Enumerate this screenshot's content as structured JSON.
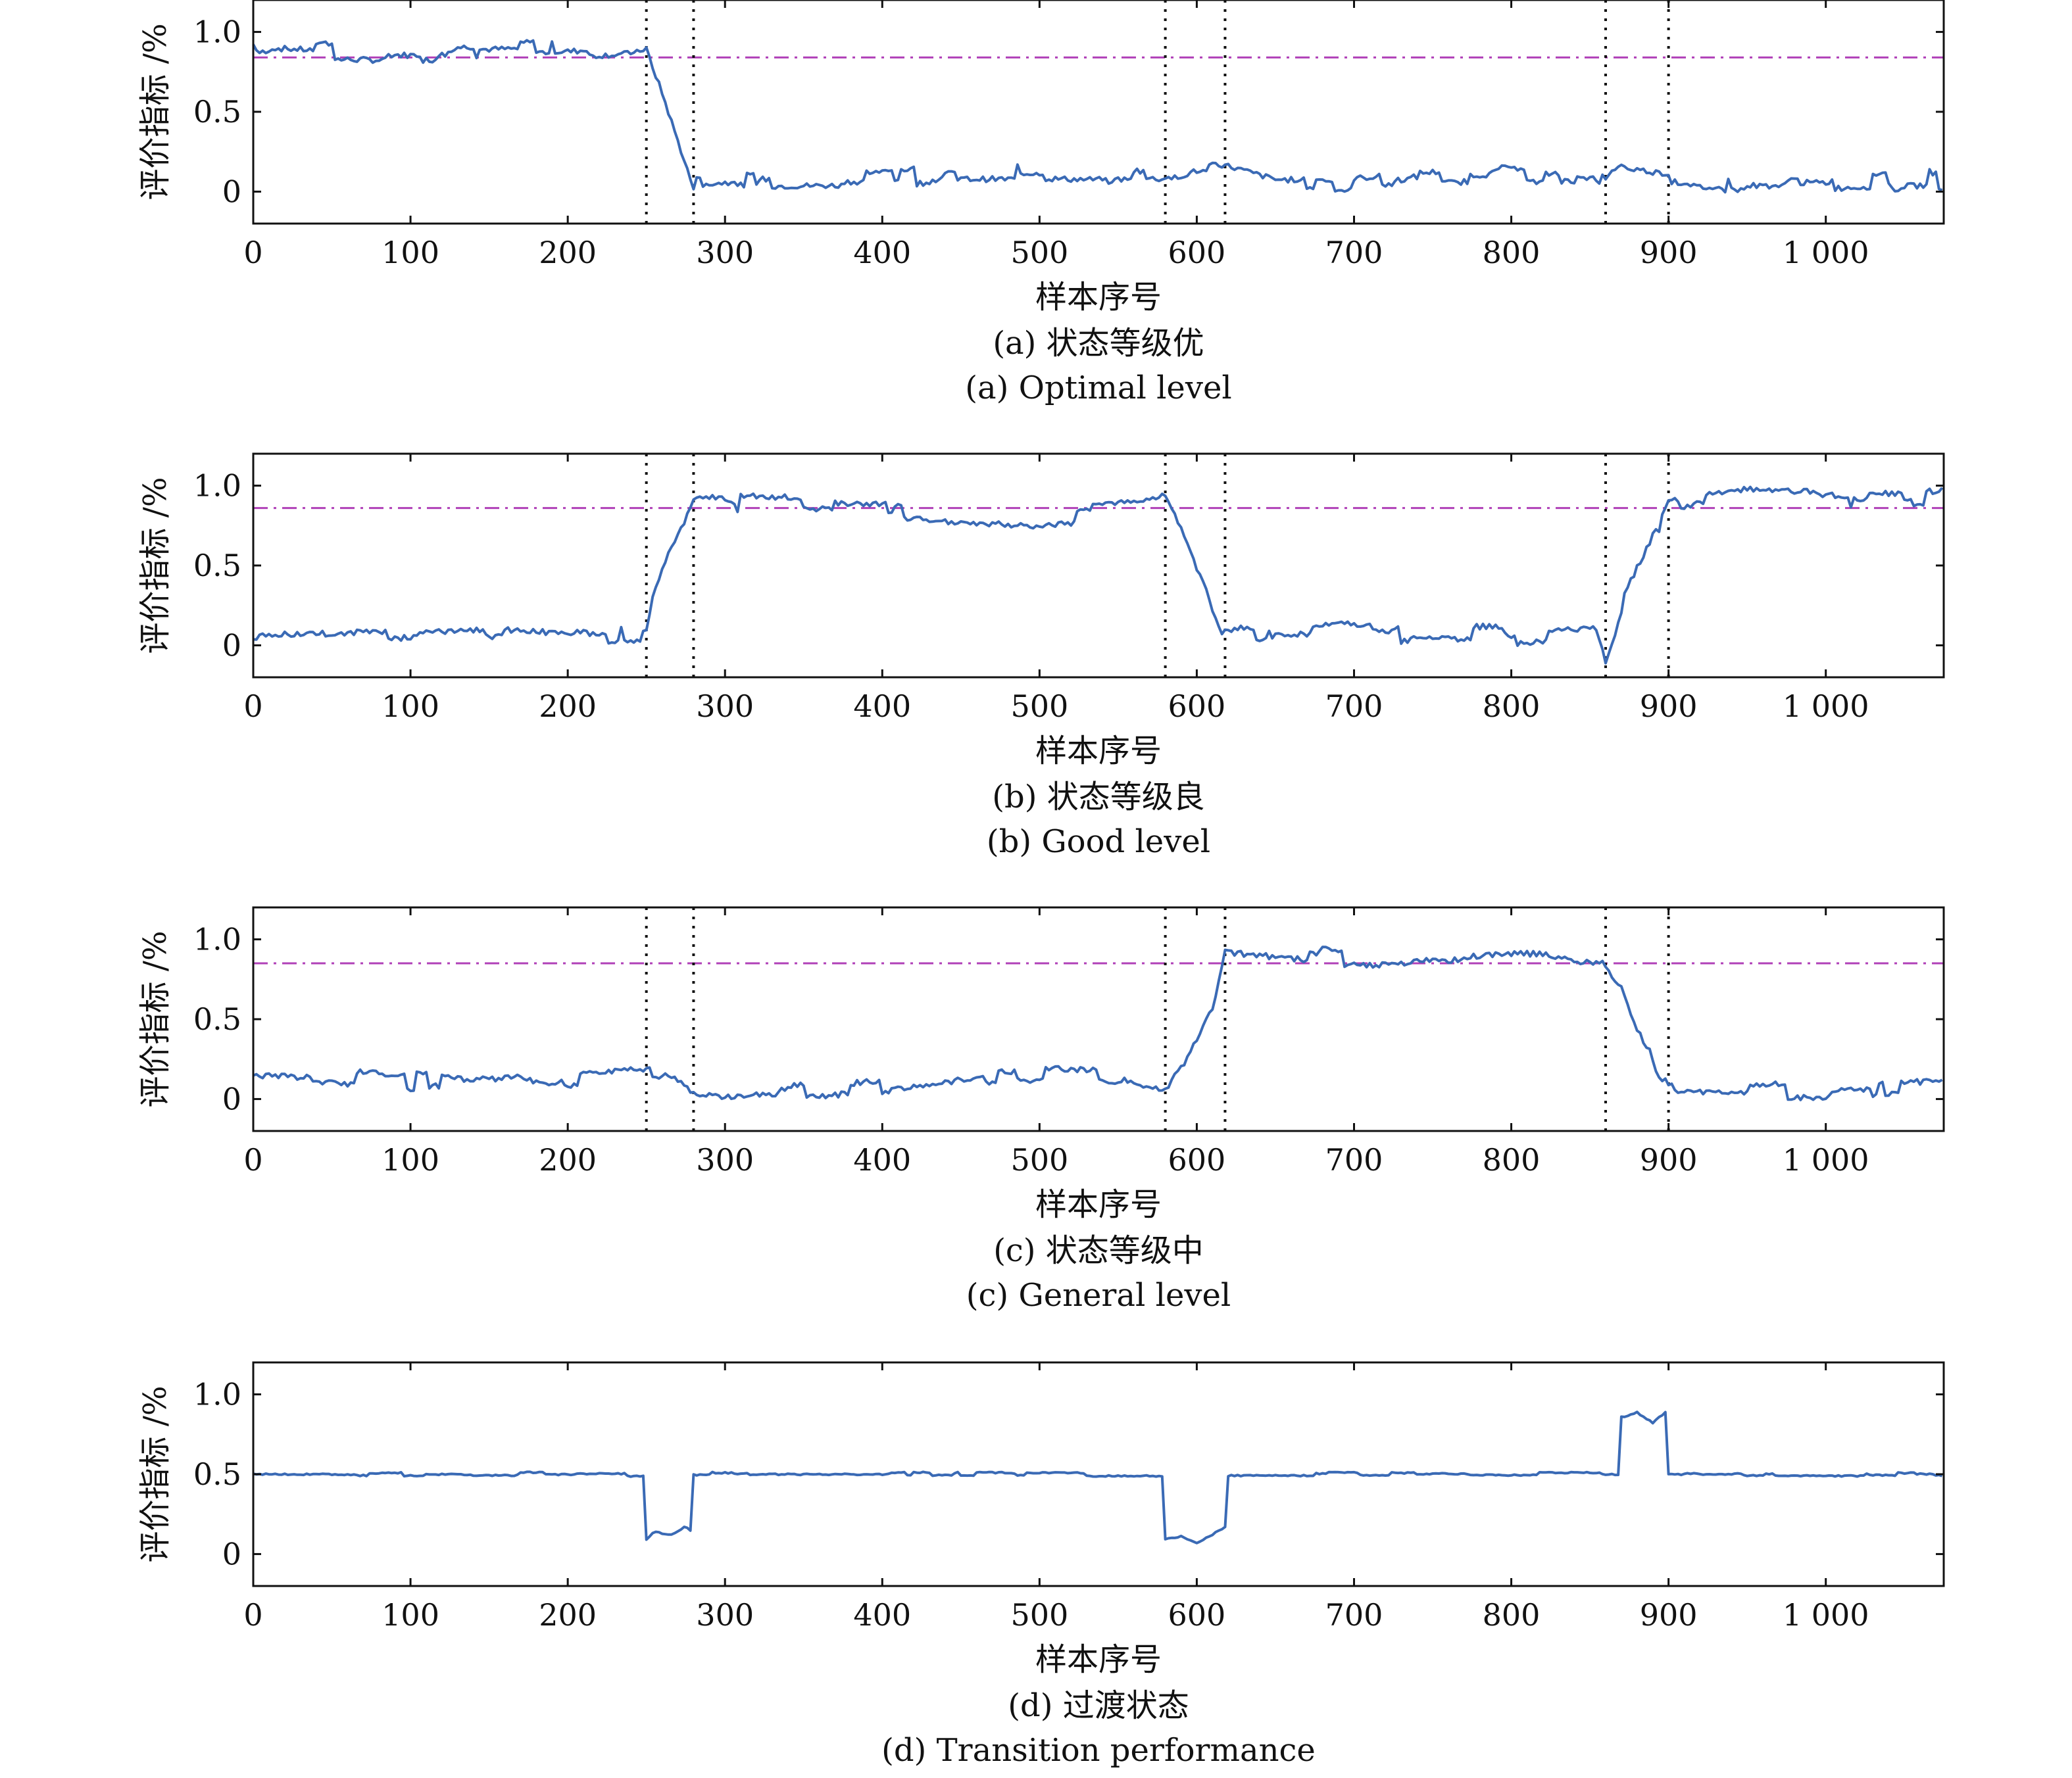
{
  "colors": {
    "series": "#3a6ab5",
    "threshold": "#b040b8",
    "axis": "#111111",
    "marker": "#111111"
  },
  "chart_data": [
    {
      "type": "line",
      "caption_cn": "(a) 状态等级优",
      "caption_en": "(a) Optimal level",
      "xlabel": "样本序号",
      "ylabel": "评价指标 /%",
      "xlim": [
        0,
        1075
      ],
      "ylim": [
        -0.2,
        1.2
      ],
      "xticks": [
        0,
        100,
        200,
        300,
        400,
        500,
        600,
        700,
        800,
        900,
        1000
      ],
      "xtick_labels": [
        "0",
        "100",
        "200",
        "300",
        "400",
        "500",
        "600",
        "700",
        "800",
        "900",
        "1 000"
      ],
      "yticks": [
        0,
        0.5,
        1.0
      ],
      "ytick_labels": [
        "0",
        "0.5",
        "1.0"
      ],
      "threshold": 0.84,
      "markers": [
        250,
        280,
        580,
        618,
        860,
        900
      ],
      "series": [
        {
          "x": [
            0,
            10,
            50,
            100,
            150,
            200,
            250,
            260,
            270,
            280,
            300,
            400,
            450,
            500,
            550,
            580,
            600,
            618,
            650,
            700,
            800,
            860,
            870,
            900,
            950,
            1000,
            1075
          ],
          "y": [
            0.92,
            0.9,
            0.88,
            0.87,
            0.88,
            0.89,
            0.92,
            0.65,
            0.35,
            0.05,
            0.06,
            0.07,
            0.12,
            0.12,
            0.11,
            0.1,
            0.16,
            0.14,
            0.05,
            0.04,
            0.11,
            0.05,
            0.12,
            0.08,
            0.04,
            0.04,
            0.08
          ]
        }
      ]
    },
    {
      "type": "line",
      "caption_cn": "(b) 状态等级良",
      "caption_en": "(b) Good level",
      "xlabel": "样本序号",
      "ylabel": "评价指标 /%",
      "xlim": [
        0,
        1075
      ],
      "ylim": [
        -0.2,
        1.2
      ],
      "xticks": [
        0,
        100,
        200,
        300,
        400,
        500,
        600,
        700,
        800,
        900,
        1000
      ],
      "xtick_labels": [
        "0",
        "100",
        "200",
        "300",
        "400",
        "500",
        "600",
        "700",
        "800",
        "900",
        "1 000"
      ],
      "yticks": [
        0,
        0.5,
        1.0
      ],
      "ytick_labels": [
        "0",
        "0.5",
        "1.0"
      ],
      "threshold": 0.86,
      "markers": [
        250,
        280,
        580,
        618,
        860,
        900
      ],
      "series": [
        {
          "x": [
            0,
            50,
            100,
            150,
            200,
            250,
            255,
            265,
            275,
            280,
            300,
            400,
            450,
            500,
            550,
            580,
            590,
            600,
            610,
            618,
            650,
            700,
            800,
            855,
            860,
            870,
            880,
            890,
            900,
            950,
            1000,
            1050,
            1075
          ],
          "y": [
            0.02,
            0.03,
            0.05,
            0.07,
            0.06,
            0.05,
            0.3,
            0.55,
            0.75,
            0.88,
            0.88,
            0.86,
            0.82,
            0.8,
            0.85,
            0.9,
            0.7,
            0.45,
            0.2,
            0.05,
            0.07,
            0.09,
            0.06,
            0.1,
            -0.05,
            0.25,
            0.45,
            0.65,
            0.88,
            0.95,
            0.93,
            0.9,
            0.92
          ]
        }
      ]
    },
    {
      "type": "line",
      "caption_cn": "(c) 状态等级中",
      "caption_en": "(c) General level",
      "xlabel": "样本序号",
      "ylabel": "评价指标 /%",
      "xlim": [
        0,
        1075
      ],
      "ylim": [
        -0.2,
        1.2
      ],
      "xticks": [
        0,
        100,
        200,
        300,
        400,
        500,
        600,
        700,
        800,
        900,
        1000
      ],
      "xtick_labels": [
        "0",
        "100",
        "200",
        "300",
        "400",
        "500",
        "600",
        "700",
        "800",
        "900",
        "1 000"
      ],
      "yticks": [
        0,
        0.5,
        1.0
      ],
      "ytick_labels": [
        "0",
        "0.5",
        "1.0"
      ],
      "threshold": 0.85,
      "markers": [
        250,
        280,
        580,
        618,
        860,
        900
      ],
      "series": [
        {
          "x": [
            0,
            50,
            100,
            150,
            200,
            250,
            265,
            280,
            300,
            400,
            450,
            500,
            550,
            580,
            590,
            600,
            610,
            615,
            618,
            650,
            700,
            750,
            800,
            855,
            860,
            870,
            880,
            890,
            900,
            950,
            1000,
            1075
          ],
          "y": [
            0.15,
            0.13,
            0.1,
            0.1,
            0.13,
            0.16,
            0.2,
            0.08,
            0.06,
            0.08,
            0.15,
            0.15,
            0.13,
            0.05,
            0.2,
            0.4,
            0.6,
            0.8,
            0.95,
            0.92,
            0.87,
            0.88,
            0.92,
            0.88,
            0.85,
            0.7,
            0.45,
            0.25,
            0.05,
            0.05,
            0.06,
            0.08
          ]
        }
      ]
    },
    {
      "type": "line",
      "caption_cn": "(d) 过渡状态",
      "caption_en": "(d) Transition performance",
      "xlabel": "样本序号",
      "ylabel": "评价指标 /%",
      "xlim": [
        0,
        1075
      ],
      "ylim": [
        -0.2,
        1.2
      ],
      "xticks": [
        0,
        100,
        200,
        300,
        400,
        500,
        600,
        700,
        800,
        900,
        1000
      ],
      "xtick_labels": [
        "0",
        "100",
        "200",
        "300",
        "400",
        "500",
        "600",
        "700",
        "800",
        "900",
        "1 000"
      ],
      "yticks": [
        0,
        0.5,
        1.0
      ],
      "ytick_labels": [
        "0",
        "0.5",
        "1.0"
      ],
      "markers": [],
      "series": [
        {
          "x": [
            0,
            249,
            250,
            255,
            265,
            275,
            279,
            280,
            579,
            580,
            590,
            600,
            610,
            618,
            619,
            869,
            870,
            880,
            890,
            899,
            900,
            1075
          ],
          "y": [
            0.5,
            0.5,
            0.1,
            0.15,
            0.12,
            0.18,
            0.14,
            0.5,
            0.5,
            0.1,
            0.12,
            0.08,
            0.13,
            0.18,
            0.5,
            0.5,
            0.85,
            0.88,
            0.82,
            0.9,
            0.5,
            0.5
          ]
        }
      ]
    }
  ]
}
